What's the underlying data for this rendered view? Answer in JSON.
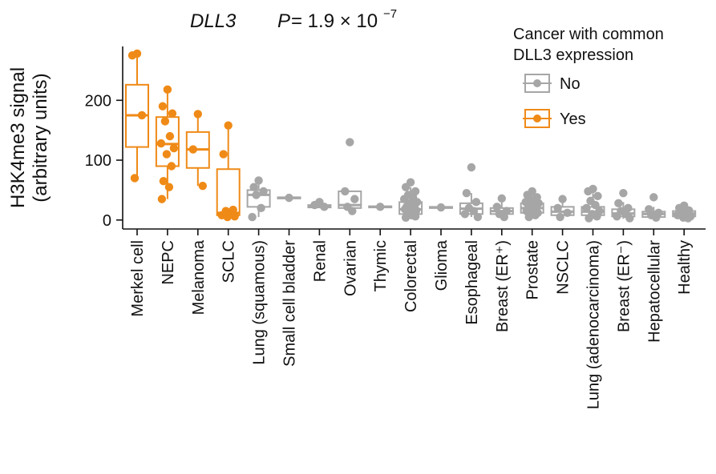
{
  "chart_data": {
    "type": "box",
    "title_gene": "DLL3",
    "title_p_label": "P",
    "title_p_value": "= 1.9 × 10",
    "title_p_exponent": "−7",
    "ylabel_line1": "H3K4me3 signal",
    "ylabel_line2": "(arbitrary units)",
    "xlabel": "",
    "ylim": [
      -15,
      290
    ],
    "yticks": [
      0,
      100,
      200
    ],
    "ytick_labels": [
      "0",
      "100",
      "200"
    ],
    "colors": {
      "No": "#a6a6a6",
      "Yes": "#ef8a17"
    },
    "legend": {
      "title_line1": "Cancer with common",
      "title_line2": "DLL3 expression",
      "entries": [
        {
          "label": "No",
          "group": "No"
        },
        {
          "label": "Yes",
          "group": "Yes"
        }
      ]
    },
    "categories": [
      {
        "label": "Merkel cell",
        "group": "Yes",
        "q1": 122,
        "median": 175,
        "q3": 226,
        "whisker_low": 70,
        "whisker_high": 278,
        "points": [
          278,
          275,
          175,
          70
        ]
      },
      {
        "label": "NEPC",
        "group": "Yes",
        "q1": 90,
        "median": 127,
        "q3": 172,
        "whisker_low": 35,
        "whisker_high": 218,
        "points": [
          218,
          190,
          178,
          165,
          140,
          128,
          120,
          110,
          90,
          65,
          55,
          35
        ]
      },
      {
        "label": "Melanoma",
        "group": "Yes",
        "q1": 87,
        "median": 118,
        "q3": 147,
        "whisker_low": 57,
        "whisker_high": 177,
        "points": [
          177,
          118,
          57
        ]
      },
      {
        "label": "SCLC",
        "group": "Yes",
        "q1": 8,
        "median": 12,
        "q3": 85,
        "whisker_low": 5,
        "whisker_high": 158,
        "points": [
          158,
          110,
          17,
          15,
          10,
          8,
          6,
          5
        ]
      },
      {
        "label": "Lung (squamous)",
        "group": "No",
        "q1": 22,
        "median": 42,
        "q3": 50,
        "whisker_low": 5,
        "whisker_high": 66,
        "points": [
          66,
          55,
          48,
          42,
          20,
          5
        ]
      },
      {
        "label": "Small cell bladder",
        "group": "No",
        "q1": 36,
        "median": 37,
        "q3": 38,
        "whisker_low": 36,
        "whisker_high": 38,
        "points": [
          37
        ]
      },
      {
        "label": "Renal",
        "group": "No",
        "q1": 21,
        "median": 23,
        "q3": 25,
        "whisker_low": 21,
        "whisker_high": 30,
        "points": [
          30,
          25,
          22
        ]
      },
      {
        "label": "Ovarian",
        "group": "No",
        "q1": 20,
        "median": 25,
        "q3": 48,
        "whisker_low": 12,
        "whisker_high": 48,
        "points": [
          130,
          48,
          35,
          22,
          15
        ]
      },
      {
        "label": "Thymic",
        "group": "No",
        "q1": 21,
        "median": 22,
        "q3": 23,
        "whisker_low": 21,
        "whisker_high": 23,
        "points": [
          22
        ]
      },
      {
        "label": "Colorectal",
        "group": "No",
        "q1": 10,
        "median": 18,
        "q3": 30,
        "whisker_low": 2,
        "whisker_high": 55,
        "points": [
          63,
          55,
          48,
          42,
          38,
          35,
          30,
          28,
          25,
          22,
          20,
          18,
          16,
          14,
          12,
          10,
          8,
          6,
          4
        ]
      },
      {
        "label": "Glioma",
        "group": "No",
        "q1": 20,
        "median": 21,
        "q3": 22,
        "whisker_low": 20,
        "whisker_high": 22,
        "points": [
          21
        ]
      },
      {
        "label": "Esophageal",
        "group": "No",
        "q1": 10,
        "median": 19,
        "q3": 28,
        "whisker_low": 5,
        "whisker_high": 45,
        "points": [
          88,
          45,
          30,
          20,
          15,
          10,
          5
        ]
      },
      {
        "label": "Breast (ER⁺)",
        "group": "No",
        "q1": 10,
        "median": 15,
        "q3": 20,
        "whisker_low": 5,
        "whisker_high": 36,
        "points": [
          36,
          22,
          15,
          10,
          5
        ]
      },
      {
        "label": "Prostate",
        "group": "No",
        "q1": 12,
        "median": 20,
        "q3": 28,
        "whisker_low": 2,
        "whisker_high": 48,
        "points": [
          48,
          42,
          38,
          35,
          32,
          30,
          28,
          25,
          22,
          20,
          18,
          15,
          12,
          10,
          8,
          5
        ]
      },
      {
        "label": "NSCLC",
        "group": "No",
        "q1": 8,
        "median": 14,
        "q3": 22,
        "whisker_low": 2,
        "whisker_high": 35,
        "points": [
          35,
          20,
          12,
          5
        ]
      },
      {
        "label": "Lung (adenocarcinoma)",
        "group": "No",
        "q1": 8,
        "median": 14,
        "q3": 22,
        "whisker_low": 2,
        "whisker_high": 45,
        "points": [
          52,
          48,
          40,
          32,
          25,
          20,
          15,
          10,
          6,
          3
        ]
      },
      {
        "label": "Breast (ER⁻)",
        "group": "No",
        "q1": 6,
        "median": 11,
        "q3": 18,
        "whisker_low": 2,
        "whisker_high": 30,
        "points": [
          45,
          28,
          20,
          15,
          10,
          6,
          3
        ]
      },
      {
        "label": "Hepatocellular",
        "group": "No",
        "q1": 5,
        "median": 10,
        "q3": 14,
        "whisker_low": 2,
        "whisker_high": 22,
        "points": [
          38,
          18,
          12,
          8,
          4
        ]
      },
      {
        "label": "Healthy",
        "group": "No",
        "q1": 6,
        "median": 11,
        "q3": 15,
        "whisker_low": 2,
        "whisker_high": 22,
        "points": [
          24,
          20,
          16,
          12,
          10,
          8,
          6,
          4,
          3
        ]
      }
    ]
  }
}
